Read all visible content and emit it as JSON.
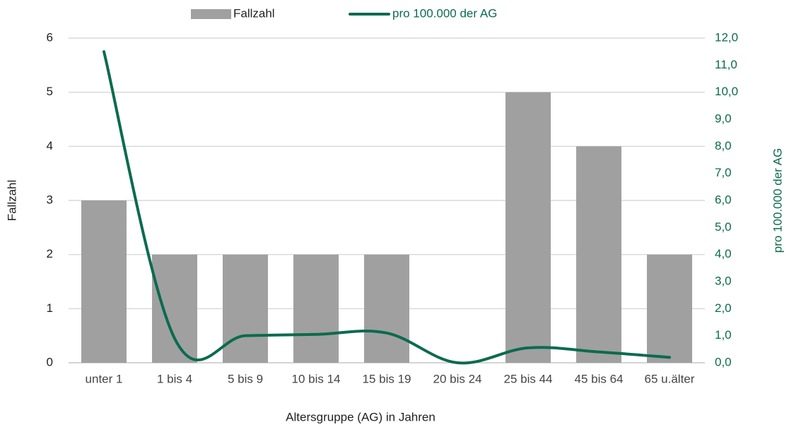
{
  "chart_data": {
    "type": "bar_line",
    "xlabel": "Altersgruppe (AG) in Jahren",
    "ylabel": "Fallzahl",
    "y2label": "pro 100.000 der AG",
    "categories": [
      "unter 1",
      "1 bis 4",
      "5 bis 9",
      "10 bis 14",
      "15 bis 19",
      "20 bis 24",
      "25 bis 44",
      "45 bis 64",
      "65 u.älter"
    ],
    "series": [
      {
        "name": "Fallzahl",
        "type": "bar",
        "color": "#a0a0a0",
        "values": [
          3,
          2,
          2,
          2,
          2,
          0,
          5,
          4,
          2
        ]
      },
      {
        "name": "pro 100.000 der AG",
        "type": "line",
        "axis": "y2",
        "color": "#0b6b4e",
        "values": [
          11.5,
          0.9,
          1.0,
          1.05,
          1.1,
          0.0,
          0.55,
          0.4,
          0.2
        ]
      }
    ],
    "ylim": [
      0,
      6
    ],
    "yticks": [
      0,
      1,
      2,
      3,
      4,
      5,
      6
    ],
    "y2lim": [
      0,
      12
    ],
    "y2ticks": [
      {
        "value": 0,
        "label": "0,0"
      },
      {
        "value": 1,
        "label": "1,0"
      },
      {
        "value": 2,
        "label": "2,0"
      },
      {
        "value": 3,
        "label": "3,0"
      },
      {
        "value": 4,
        "label": "4,0"
      },
      {
        "value": 5,
        "label": "5,0"
      },
      {
        "value": 6,
        "label": "6,0"
      },
      {
        "value": 7,
        "label": "7,0"
      },
      {
        "value": 8,
        "label": "8,0"
      },
      {
        "value": 9,
        "label": "9,0"
      },
      {
        "value": 10,
        "label": "10,0"
      },
      {
        "value": 11,
        "label": "11,0"
      },
      {
        "value": 12,
        "label": "12,0"
      }
    ],
    "grid": true,
    "legend": "top"
  }
}
